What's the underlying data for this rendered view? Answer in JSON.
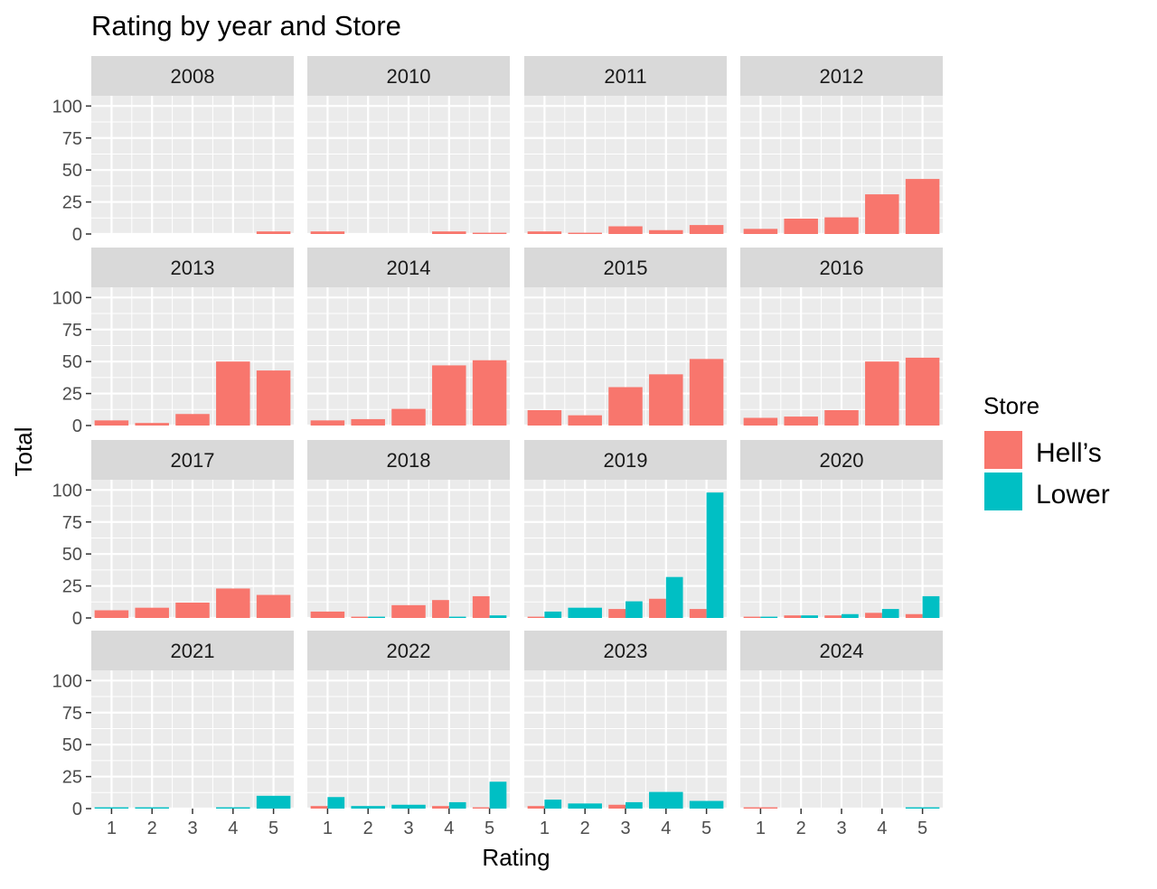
{
  "chart_data": {
    "type": "bar",
    "title": "Rating by year and Store",
    "xlabel": "Rating",
    "ylabel": "Total",
    "categories": [
      1,
      2,
      3,
      4,
      5
    ],
    "ylim": [
      0,
      108
    ],
    "y_ticks": [
      0,
      25,
      50,
      75,
      100
    ],
    "grid": true,
    "legend": {
      "title": "Store",
      "placement": "right",
      "entries": [
        {
          "name": "Hell’s",
          "color": "#F8766D"
        },
        {
          "name": "Lower",
          "color": "#00BFC4"
        }
      ]
    },
    "panels": [
      {
        "label": "2008",
        "series": [
          {
            "name": "Hell’s",
            "values": [
              null,
              null,
              null,
              null,
              2
            ]
          },
          {
            "name": "Lower",
            "values": [
              null,
              null,
              null,
              null,
              null
            ]
          }
        ]
      },
      {
        "label": "2010",
        "series": [
          {
            "name": "Hell’s",
            "values": [
              2,
              null,
              null,
              2,
              1
            ]
          },
          {
            "name": "Lower",
            "values": [
              null,
              null,
              null,
              null,
              null
            ]
          }
        ]
      },
      {
        "label": "2011",
        "series": [
          {
            "name": "Hell’s",
            "values": [
              2,
              1,
              6,
              3,
              7
            ]
          },
          {
            "name": "Lower",
            "values": [
              null,
              null,
              null,
              null,
              null
            ]
          }
        ]
      },
      {
        "label": "2012",
        "series": [
          {
            "name": "Hell’s",
            "values": [
              4,
              12,
              13,
              31,
              43
            ]
          },
          {
            "name": "Lower",
            "values": [
              null,
              null,
              null,
              null,
              null
            ]
          }
        ]
      },
      {
        "label": "2013",
        "series": [
          {
            "name": "Hell’s",
            "values": [
              4,
              2,
              9,
              50,
              43
            ]
          },
          {
            "name": "Lower",
            "values": [
              null,
              null,
              null,
              null,
              null
            ]
          }
        ]
      },
      {
        "label": "2014",
        "series": [
          {
            "name": "Hell’s",
            "values": [
              4,
              5,
              13,
              47,
              51
            ]
          },
          {
            "name": "Lower",
            "values": [
              null,
              null,
              null,
              null,
              null
            ]
          }
        ]
      },
      {
        "label": "2015",
        "series": [
          {
            "name": "Hell’s",
            "values": [
              12,
              8,
              30,
              40,
              52
            ]
          },
          {
            "name": "Lower",
            "values": [
              null,
              null,
              null,
              null,
              null
            ]
          }
        ]
      },
      {
        "label": "2016",
        "series": [
          {
            "name": "Hell’s",
            "values": [
              6,
              7,
              12,
              50,
              53
            ]
          },
          {
            "name": "Lower",
            "values": [
              null,
              null,
              null,
              null,
              null
            ]
          }
        ]
      },
      {
        "label": "2017",
        "series": [
          {
            "name": "Hell’s",
            "values": [
              6,
              8,
              12,
              23,
              18
            ]
          },
          {
            "name": "Lower",
            "values": [
              null,
              null,
              null,
              null,
              null
            ]
          }
        ]
      },
      {
        "label": "2018",
        "series": [
          {
            "name": "Hell’s",
            "values": [
              5,
              1,
              10,
              14,
              17
            ]
          },
          {
            "name": "Lower",
            "values": [
              null,
              1,
              null,
              1,
              2
            ]
          }
        ]
      },
      {
        "label": "2019",
        "series": [
          {
            "name": "Hell’s",
            "values": [
              1,
              null,
              7,
              15,
              7
            ]
          },
          {
            "name": "Lower",
            "values": [
              5,
              8,
              13,
              32,
              98
            ]
          }
        ]
      },
      {
        "label": "2020",
        "series": [
          {
            "name": "Hell’s",
            "values": [
              1,
              2,
              2,
              4,
              3
            ]
          },
          {
            "name": "Lower",
            "values": [
              1,
              2,
              3,
              7,
              17
            ]
          }
        ]
      },
      {
        "label": "2021",
        "series": [
          {
            "name": "Hell’s",
            "values": [
              null,
              null,
              null,
              null,
              null
            ]
          },
          {
            "name": "Lower",
            "values": [
              1,
              1,
              null,
              1,
              10
            ]
          }
        ]
      },
      {
        "label": "2022",
        "series": [
          {
            "name": "Hell’s",
            "values": [
              2,
              null,
              null,
              2,
              1
            ]
          },
          {
            "name": "Lower",
            "values": [
              9,
              2,
              3,
              5,
              21
            ]
          }
        ]
      },
      {
        "label": "2023",
        "series": [
          {
            "name": "Hell’s",
            "values": [
              2,
              null,
              3,
              null,
              null
            ]
          },
          {
            "name": "Lower",
            "values": [
              7,
              4,
              5,
              13,
              6
            ]
          }
        ]
      },
      {
        "label": "2024",
        "series": [
          {
            "name": "Hell’s",
            "values": [
              1,
              null,
              null,
              null,
              null
            ]
          },
          {
            "name": "Lower",
            "values": [
              null,
              null,
              null,
              null,
              1
            ]
          }
        ]
      }
    ]
  }
}
